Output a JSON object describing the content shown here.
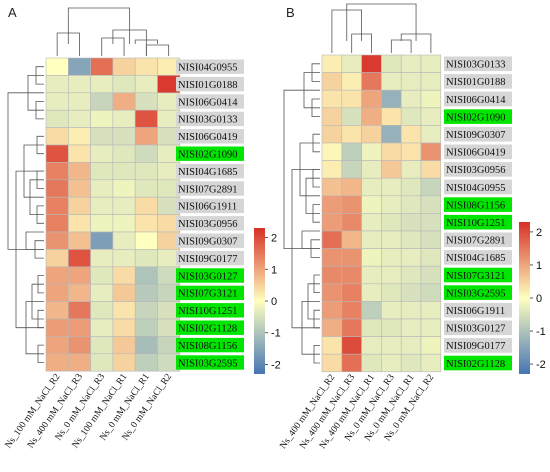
{
  "chart_data": [
    {
      "type": "heatmap",
      "panel_label": "A",
      "columns": [
        "Ns_100 mM_NaCl_R2",
        "Ns_400 mM_NaCl_R3",
        "Ns_0 mM_NaCl_R3",
        "Ns_100 mM_NaCl_R1",
        "Ns_0 mM_NaCl_R1",
        "Ns_0 mM_NaCl_R2"
      ],
      "rows": [
        "NISI04G0955",
        "NISI01G0188",
        "NISI06G0414",
        "NISI03G0133",
        "NISI06G0419",
        "NISI02G1090",
        "NISI04G1685",
        "NISI07G2891",
        "NISI06G1911",
        "NISI03G0956",
        "NISI09G0307",
        "NISI09G0177",
        "NISI03G0127",
        "NISI07G3121",
        "NISI10G1251",
        "NISI02G1128",
        "NISI08G1156",
        "NISI03G2595"
      ],
      "highlighted_rows": [
        "NISI02G1090",
        "NISI03G0127",
        "NISI07G3121",
        "NISI10G1251",
        "NISI02G1128",
        "NISI08G1156",
        "NISI03G2595"
      ],
      "values": [
        [
          0.0,
          -1.5,
          1.6,
          0.5,
          0.3,
          0.2
        ],
        [
          -0.3,
          -0.3,
          -0.3,
          -0.4,
          -0.3,
          2.2
        ],
        [
          -0.3,
          -0.3,
          -0.7,
          0.9,
          -0.5,
          -0.3
        ],
        [
          -0.4,
          -0.3,
          -0.2,
          -0.3,
          1.9,
          -0.3
        ],
        [
          0.4,
          0.2,
          -0.5,
          -0.5,
          1.0,
          -0.5
        ],
        [
          1.9,
          0.3,
          -0.3,
          -0.4,
          -0.6,
          -0.3
        ],
        [
          1.4,
          0.8,
          -0.4,
          -0.4,
          -0.4,
          -0.3
        ],
        [
          1.5,
          0.7,
          -0.3,
          -0.2,
          -0.4,
          -0.4
        ],
        [
          1.4,
          0.5,
          -0.3,
          -0.3,
          0.4,
          -0.5
        ],
        [
          1.4,
          0.3,
          -0.2,
          -0.2,
          0.3,
          0.4
        ],
        [
          1.2,
          0.7,
          -1.6,
          -0.3,
          0.0,
          0.5
        ],
        [
          0.5,
          1.9,
          -0.3,
          -0.3,
          -0.4,
          -0.3
        ],
        [
          1.0,
          1.0,
          -0.4,
          0.4,
          -1.0,
          -0.6
        ],
        [
          1.0,
          0.8,
          -0.3,
          0.6,
          -0.9,
          -0.7
        ],
        [
          0.8,
          1.5,
          -0.4,
          0.3,
          -0.7,
          -0.5
        ],
        [
          1.1,
          1.1,
          -0.3,
          0.4,
          -0.8,
          -0.5
        ],
        [
          1.0,
          1.2,
          -0.4,
          0.6,
          -1.1,
          -0.7
        ],
        [
          0.9,
          0.9,
          -0.4,
          0.5,
          -0.8,
          -0.6
        ]
      ],
      "colorbar_ticks": [
        "2",
        "1",
        "0",
        "-1",
        "-2"
      ],
      "vmin": -2.3,
      "vmax": 2.3
    },
    {
      "type": "heatmap",
      "panel_label": "B",
      "columns": [
        "Ns_400 mM_NaCl_R2",
        "Ns_400 mM_NaCl_R3",
        "Ns_400 mM_NaCl_R1",
        "Ns_0 mM_NaCl_R3",
        "Ns_0 mM_NaCl_R1",
        "Ns_0 mM_NaCl_R2"
      ],
      "rows": [
        "NISI03G0133",
        "NISI01G0188",
        "NISI06G0414",
        "NISI02G1090",
        "NISI09G0307",
        "NISI06G0419",
        "NISI03G0956",
        "NISI04G0955",
        "NISI08G1156",
        "NISI10G1251",
        "NISI07G2891",
        "NISI04G1685",
        "NISI07G3121",
        "NISI03G2595",
        "NISI06G1911",
        "NISI03G0127",
        "NISI09G0177",
        "NISI02G1128"
      ],
      "highlighted_rows": [
        "NISI02G1090",
        "NISI08G1156",
        "NISI10G1251",
        "NISI07G3121",
        "NISI03G2595",
        "NISI02G1128"
      ],
      "values": [
        [
          0.2,
          -0.3,
          2.2,
          -0.4,
          -0.3,
          -0.3
        ],
        [
          0.5,
          0.2,
          1.5,
          -0.3,
          -0.3,
          -0.3
        ],
        [
          0.3,
          0.3,
          1.0,
          -1.3,
          -0.3,
          -0.2
        ],
        [
          0.5,
          -0.5,
          0.9,
          0.3,
          -0.4,
          -0.3
        ],
        [
          0.5,
          0.3,
          0.5,
          -1.3,
          0.3,
          -0.3
        ],
        [
          0.1,
          -0.8,
          -0.2,
          0.4,
          0.3,
          1.2
        ],
        [
          0.2,
          -0.7,
          -0.3,
          0.6,
          -0.3,
          0.4
        ],
        [
          0.7,
          0.8,
          -0.3,
          -0.3,
          -0.4,
          -0.7
        ],
        [
          1.1,
          1.2,
          -0.2,
          -0.3,
          -0.4,
          -0.5
        ],
        [
          1.1,
          1.3,
          -0.3,
          -0.4,
          -0.5,
          -0.5
        ],
        [
          1.6,
          0.8,
          -0.3,
          -0.3,
          -0.4,
          -0.5
        ],
        [
          1.2,
          1.2,
          -0.2,
          -0.3,
          -0.3,
          -0.4
        ],
        [
          1.3,
          1.3,
          -0.3,
          -0.3,
          -0.4,
          -0.5
        ],
        [
          1.2,
          1.4,
          -0.3,
          -0.4,
          -0.5,
          -0.6
        ],
        [
          1.1,
          1.4,
          -0.8,
          -0.3,
          -0.3,
          -0.3
        ],
        [
          0.9,
          1.5,
          -0.4,
          -0.4,
          -0.3,
          -0.3
        ],
        [
          0.3,
          2.0,
          -0.3,
          -0.3,
          -0.3,
          -0.2
        ],
        [
          0.4,
          1.6,
          -0.4,
          -0.3,
          -0.4,
          -0.3
        ]
      ],
      "colorbar_ticks": [
        "2",
        "1",
        "0",
        "-1",
        "-2"
      ],
      "vmin": -2.3,
      "vmax": 2.3
    }
  ],
  "colors": {
    "low": "#4575b4",
    "mid": "#ffffbf",
    "high": "#d73027",
    "highlight": "#00e600",
    "label_box": "#d6d6d6"
  }
}
